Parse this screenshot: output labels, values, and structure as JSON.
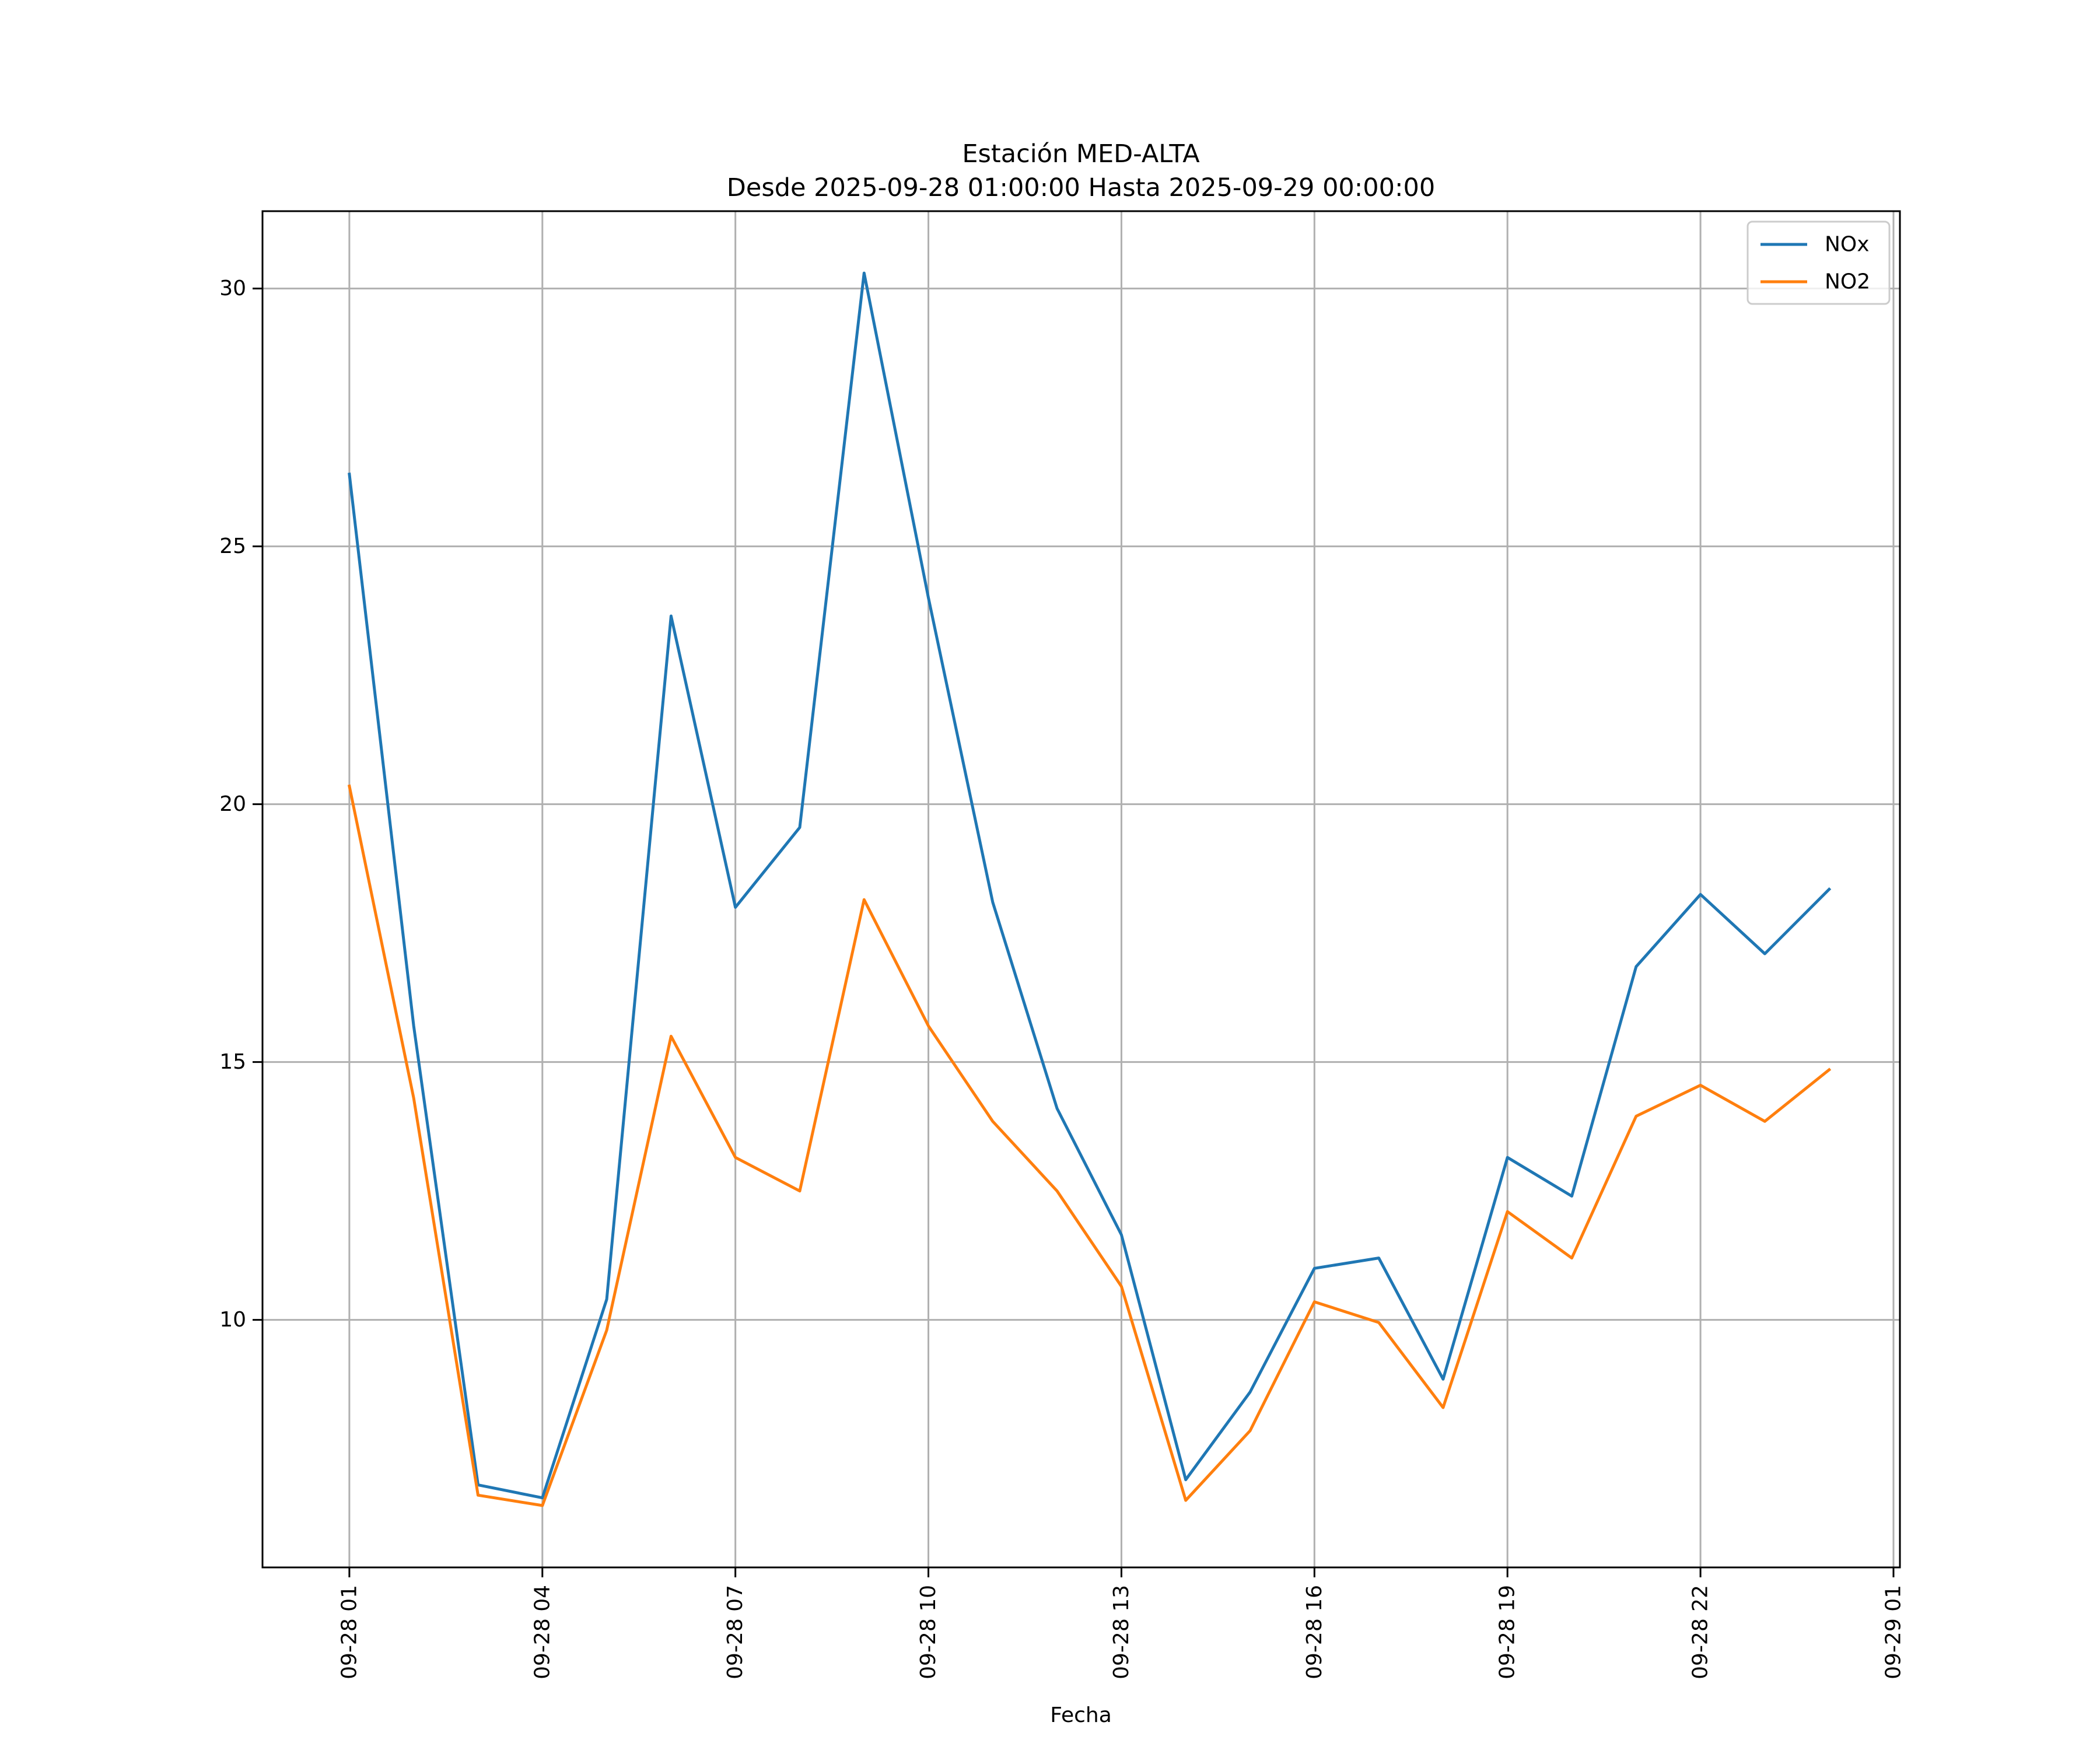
{
  "chart_data": {
    "type": "line",
    "title": "Estación MED-ALTA",
    "subtitle": "Desde 2025-09-28 01:00:00 Hasta 2025-09-29 00:00:00",
    "xlabel": "Fecha",
    "ylabel": "",
    "x_hours": [
      1,
      2,
      3,
      4,
      5,
      6,
      7,
      8,
      9,
      10,
      11,
      12,
      13,
      14,
      15,
      16,
      17,
      18,
      19,
      20,
      21,
      22,
      23,
      24
    ],
    "xlim_hours": [
      -0.35,
      25.1
    ],
    "ylim": [
      5.2,
      31.5
    ],
    "x_ticks": [
      {
        "hour": 1,
        "label": "09-28 01"
      },
      {
        "hour": 4,
        "label": "09-28 04"
      },
      {
        "hour": 7,
        "label": "09-28 07"
      },
      {
        "hour": 10,
        "label": "09-28 10"
      },
      {
        "hour": 13,
        "label": "09-28 13"
      },
      {
        "hour": 16,
        "label": "09-28 16"
      },
      {
        "hour": 19,
        "label": "09-28 19"
      },
      {
        "hour": 22,
        "label": "09-28 22"
      },
      {
        "hour": 25,
        "label": "09-29 01"
      }
    ],
    "y_ticks": [
      {
        "value": 10,
        "label": "10"
      },
      {
        "value": 15,
        "label": "15"
      },
      {
        "value": 20,
        "label": "20"
      },
      {
        "value": 25,
        "label": "25"
      },
      {
        "value": 30,
        "label": "30"
      }
    ],
    "grid": true,
    "legend_position": "top-right",
    "series": [
      {
        "name": "NOx",
        "color": "#1f77b4",
        "values": [
          26.4,
          15.7,
          6.8,
          6.55,
          10.4,
          23.65,
          18.0,
          19.55,
          30.3,
          24.0,
          18.1,
          14.1,
          11.65,
          6.9,
          8.6,
          11.0,
          11.2,
          8.85,
          13.15,
          12.4,
          16.85,
          18.25,
          17.1,
          18.35
        ]
      },
      {
        "name": "NO2",
        "color": "#ff7f0e",
        "values": [
          20.35,
          14.3,
          6.6,
          6.4,
          9.8,
          15.5,
          13.15,
          12.5,
          18.15,
          15.7,
          13.85,
          12.5,
          10.65,
          6.5,
          7.85,
          10.35,
          9.95,
          8.3,
          12.1,
          11.2,
          13.95,
          14.55,
          13.85,
          14.85
        ]
      }
    ]
  }
}
